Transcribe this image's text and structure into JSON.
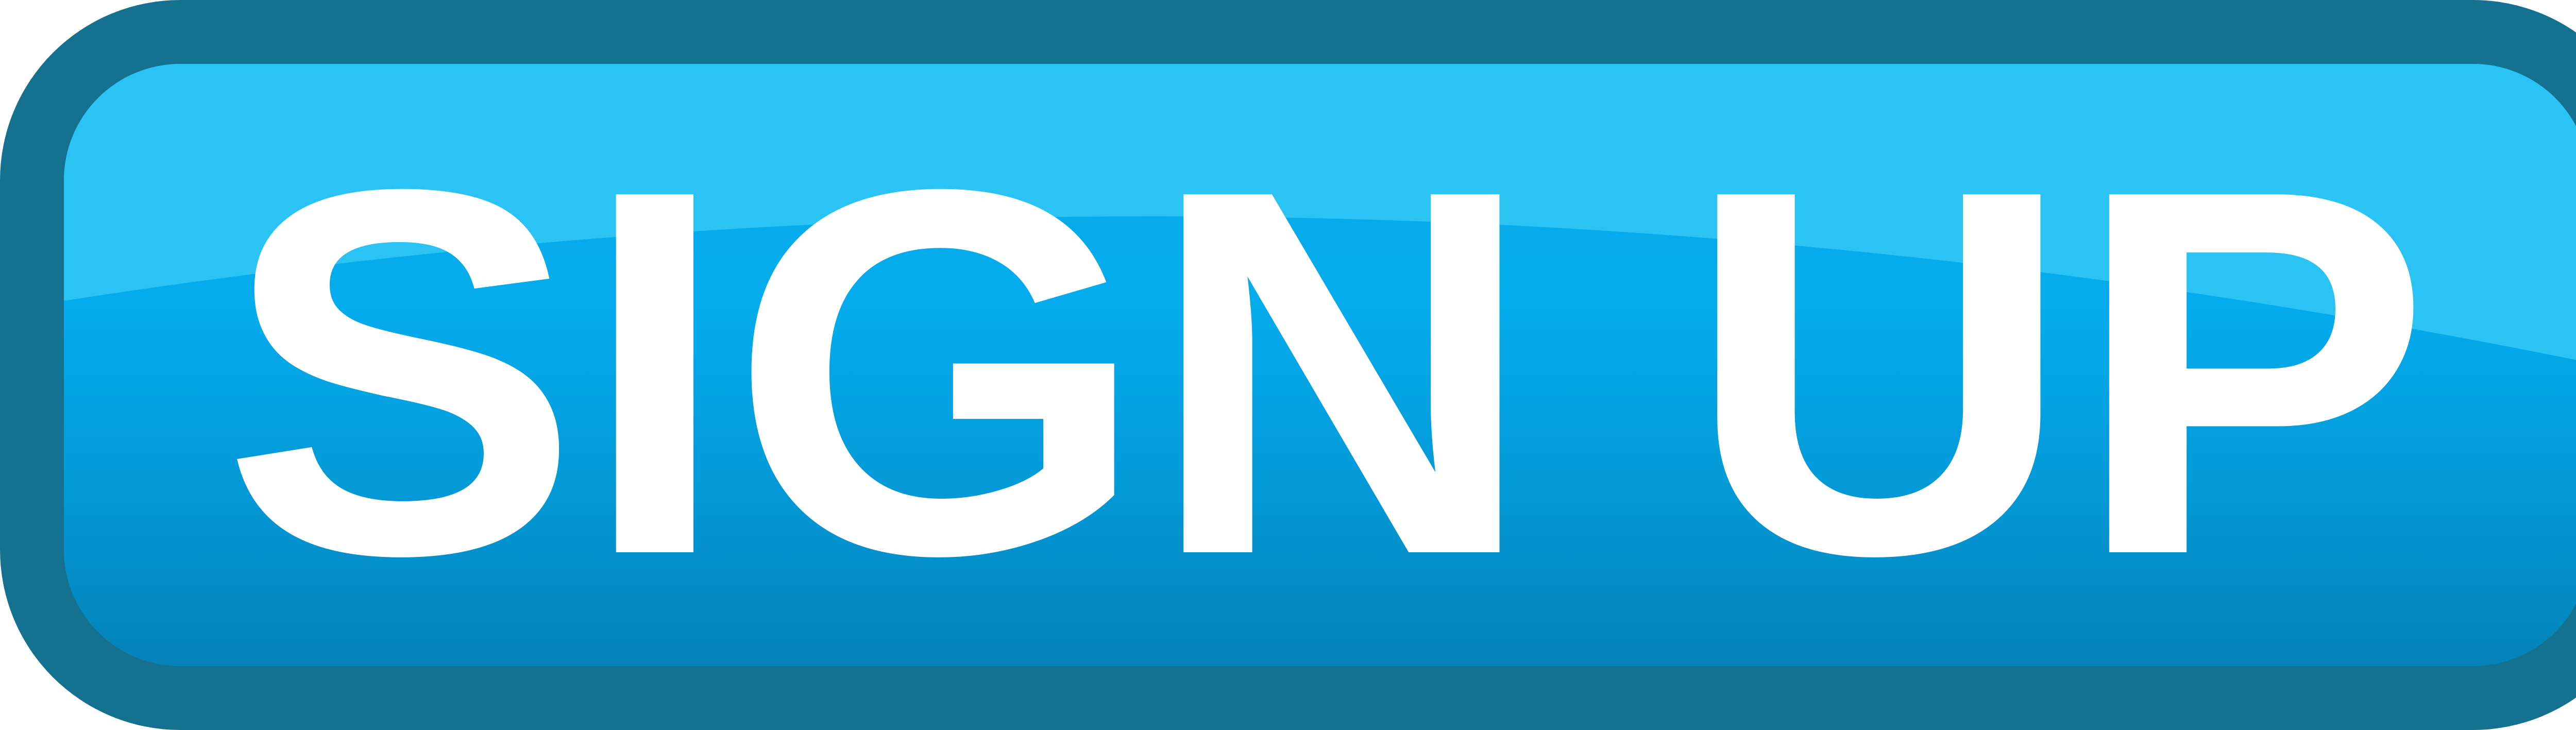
{
  "button": {
    "label": "SIGN UP",
    "colors": {
      "frame": "#157190",
      "face_top": "#2ac3f3",
      "face_mid": "#04aced",
      "face_bottom": "#0482b8",
      "text": "#ffffff"
    }
  }
}
